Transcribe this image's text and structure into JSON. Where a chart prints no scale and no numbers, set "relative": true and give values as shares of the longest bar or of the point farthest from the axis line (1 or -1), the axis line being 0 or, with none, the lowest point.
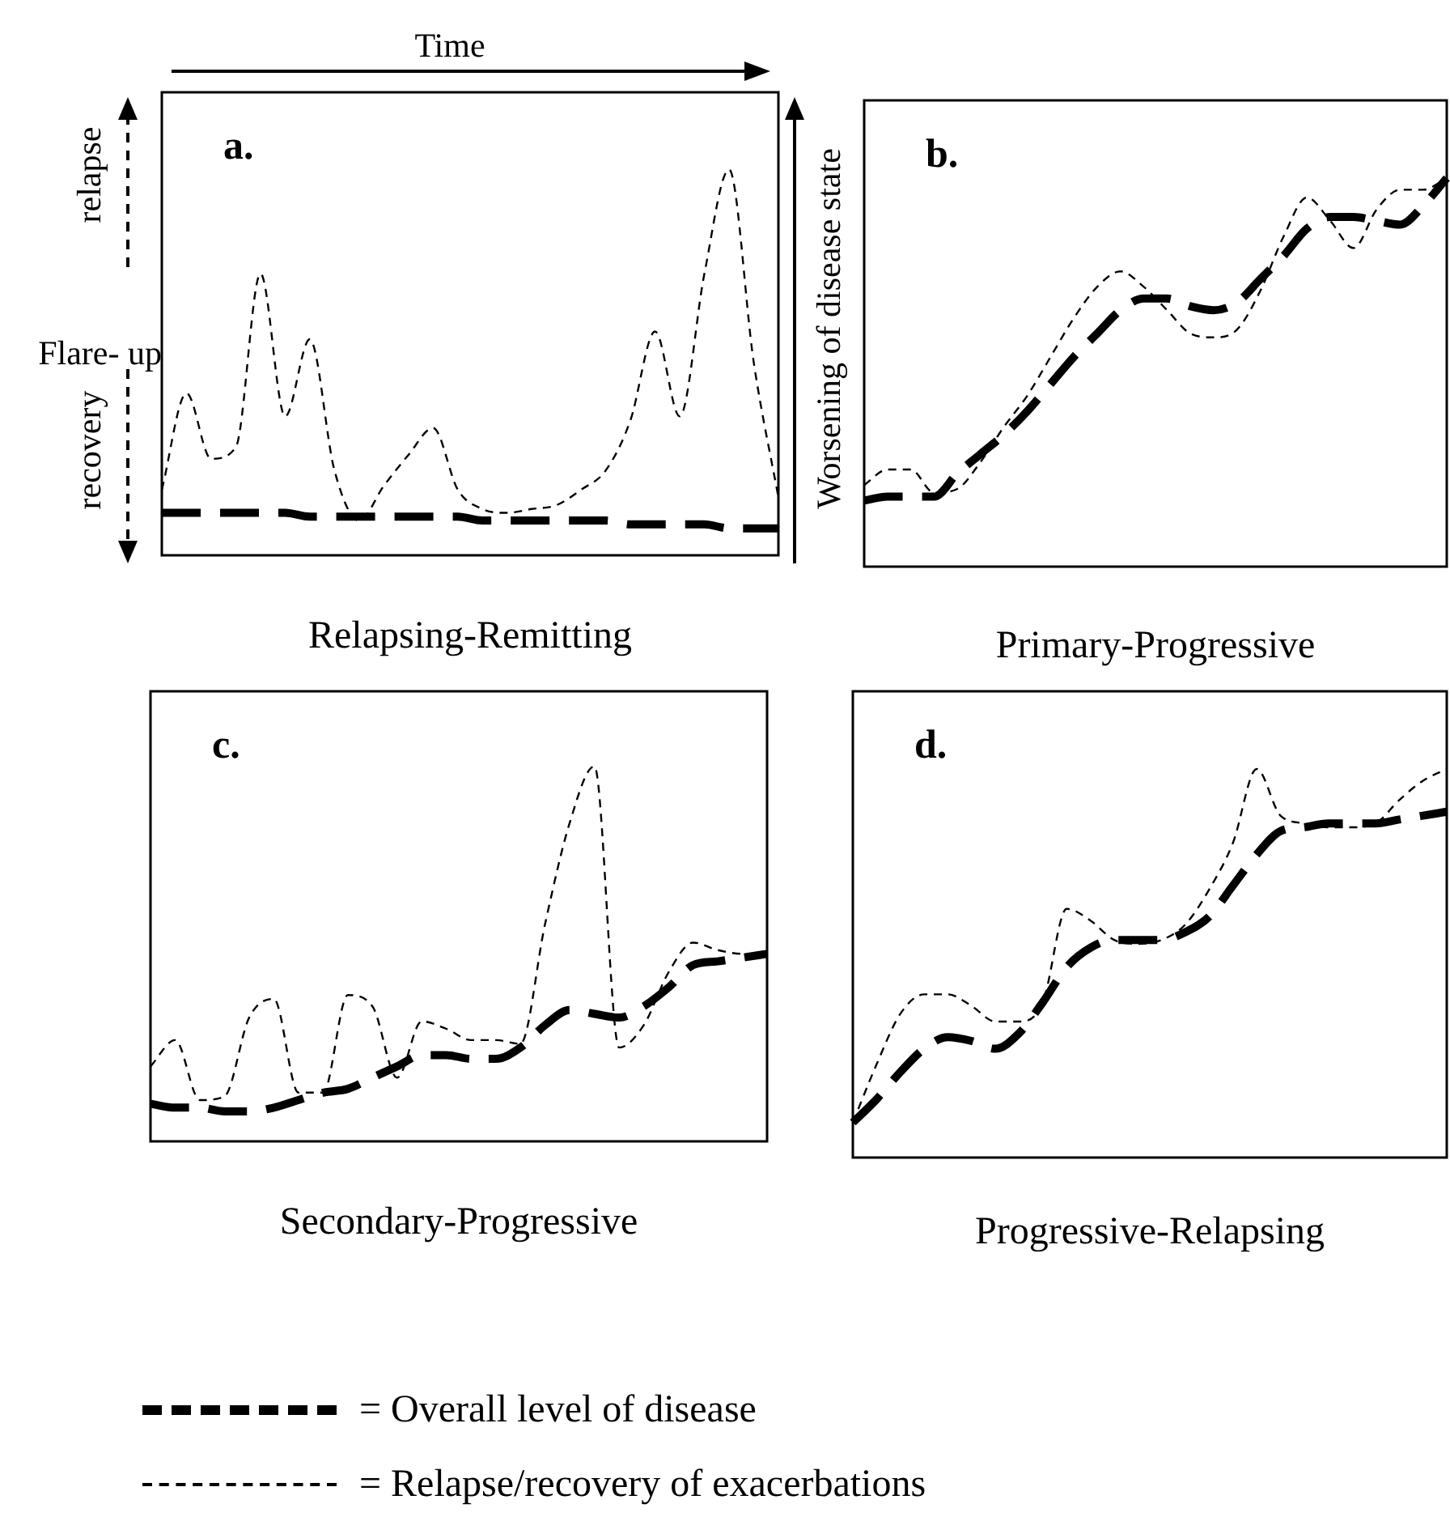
{
  "chart_data": [
    {
      "type": "line",
      "title": "a.",
      "xlabel": "Relapsing-Remitting",
      "relative": true,
      "legend": "bottom",
      "annotations": [
        "Time",
        "relapse",
        "Flare- up",
        "recovery"
      ],
      "categories": [
        null,
        null,
        null,
        null,
        null,
        null,
        null,
        null,
        null,
        null,
        null,
        null,
        null,
        null,
        null,
        null,
        null,
        null,
        null,
        null,
        null,
        null,
        null,
        null,
        null,
        null
      ],
      "series": [
        {
          "name": "= Overall level of disease",
          "color": "#000000",
          "line_style": "dashed",
          "values": [
            0.11,
            0.11,
            0.11,
            0.11,
            0.11,
            0.11,
            0.1,
            0.1,
            0.1,
            0.1,
            0.1,
            0.1,
            0.1,
            0.09,
            0.09,
            0.09,
            0.09,
            0.09,
            0.09,
            0.08,
            0.08,
            0.08,
            0.08,
            0.07,
            0.07,
            0.07
          ]
        },
        {
          "name": "= Relapse/recovery of exacerbations",
          "color": "#000000",
          "line_style": "dashed",
          "values": [
            0.17,
            0.42,
            0.25,
            0.28,
            0.73,
            0.36,
            0.56,
            0.22,
            0.09,
            0.18,
            0.26,
            0.33,
            0.17,
            0.12,
            0.11,
            0.12,
            0.13,
            0.17,
            0.22,
            0.35,
            0.58,
            0.36,
            0.73,
            1,
            0.5,
            0.15
          ]
        }
      ]
    },
    {
      "type": "line",
      "title": "b.",
      "xlabel": "Primary-Progressive",
      "ylabel": "Worsening of disease state",
      "relative": true,
      "categories": [
        null,
        null,
        null,
        null,
        null,
        null,
        null,
        null,
        null,
        null,
        null,
        null,
        null,
        null,
        null,
        null,
        null,
        null,
        null,
        null,
        null,
        null,
        null,
        null,
        null,
        null
      ],
      "series": [
        {
          "color": "#000000",
          "line_style": "dashed",
          "values": [
            0.17,
            0.18,
            0.18,
            0.18,
            0.24,
            0.29,
            0.34,
            0.4,
            0.47,
            0.54,
            0.6,
            0.66,
            0.69,
            0.69,
            0.67,
            0.66,
            0.68,
            0.74,
            0.8,
            0.87,
            0.9,
            0.9,
            0.89,
            0.88,
            0.93,
            1
          ]
        },
        {
          "color": "#000000",
          "line_style": "dashed",
          "values": [
            0.21,
            0.25,
            0.25,
            0.19,
            0.2,
            0.27,
            0.36,
            0.44,
            0.54,
            0.64,
            0.72,
            0.76,
            0.72,
            0.66,
            0.6,
            0.59,
            0.61,
            0.71,
            0.85,
            0.95,
            0.89,
            0.82,
            0.92,
            0.97,
            0.97,
            1
          ]
        }
      ]
    },
    {
      "type": "line",
      "title": "c.",
      "xlabel": "Secondary-Progressive",
      "relative": true,
      "categories": [
        null,
        null,
        null,
        null,
        null,
        null,
        null,
        null,
        null,
        null,
        null,
        null,
        null,
        null,
        null,
        null,
        null,
        null,
        null,
        null,
        null,
        null,
        null,
        null,
        null,
        null
      ],
      "series": [
        {
          "color": "#000000",
          "line_style": "dashed",
          "values": [
            0.1,
            0.09,
            0.09,
            0.08,
            0.08,
            0.09,
            0.11,
            0.13,
            0.14,
            0.17,
            0.2,
            0.23,
            0.23,
            0.22,
            0.22,
            0.25,
            0.31,
            0.35,
            0.34,
            0.33,
            0.36,
            0.41,
            0.47,
            0.48,
            0.49,
            0.5
          ]
        },
        {
          "color": "#000000",
          "line_style": "dashed",
          "values": [
            0.2,
            0.27,
            0.11,
            0.12,
            0.33,
            0.38,
            0.13,
            0.13,
            0.39,
            0.36,
            0.17,
            0.32,
            0.3,
            0.27,
            0.27,
            0.26,
            0.58,
            0.85,
            1,
            0.25,
            0.31,
            0.45,
            0.53,
            0.51,
            0.5,
            0.5
          ]
        }
      ]
    },
    {
      "type": "line",
      "title": "d.",
      "xlabel": "Progressive-Relapsing",
      "relative": true,
      "categories": [
        null,
        null,
        null,
        null,
        null,
        null,
        null,
        null,
        null,
        null,
        null,
        null,
        null,
        null,
        null,
        null,
        null,
        null,
        null,
        null,
        null,
        null,
        null,
        null,
        null,
        null
      ],
      "series": [
        {
          "color": "#000000",
          "line_style": "dashed",
          "values": [
            0.09,
            0.15,
            0.22,
            0.28,
            0.31,
            0.3,
            0.28,
            0.32,
            0.4,
            0.49,
            0.54,
            0.56,
            0.56,
            0.56,
            0.58,
            0.62,
            0.7,
            0.78,
            0.84,
            0.85,
            0.86,
            0.86,
            0.86,
            0.87,
            0.88,
            0.89
          ]
        },
        {
          "color": "#000000",
          "line_style": "dashed",
          "values": [
            0.09,
            0.24,
            0.37,
            0.42,
            0.42,
            0.39,
            0.35,
            0.35,
            0.4,
            0.64,
            0.61,
            0.56,
            0.55,
            0.56,
            0.6,
            0.69,
            0.81,
            1,
            0.88,
            0.86,
            0.85,
            0.85,
            0.86,
            0.92,
            0.97,
            1
          ]
        }
      ]
    }
  ]
}
